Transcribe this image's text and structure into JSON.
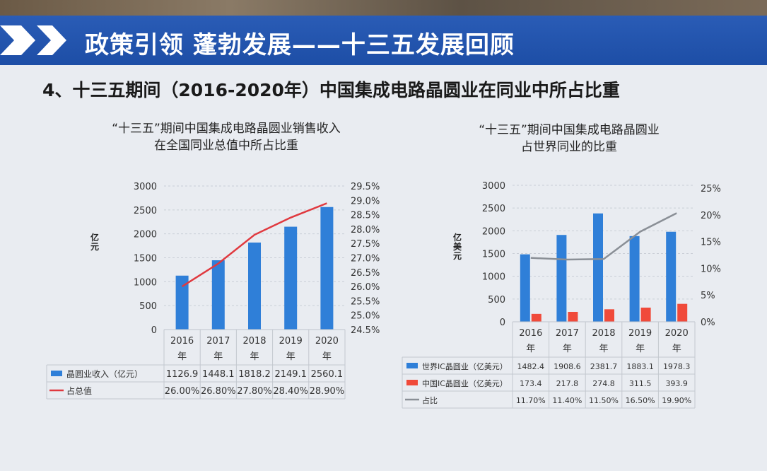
{
  "header": {
    "title": "政策引领 蓬勃发展——十三五发展回顾",
    "accent": "#1d4ea6"
  },
  "subtitle": "4、十三五期间（2016-2020年）中国集成电路晶圆业在同业中所占比重",
  "charts": [
    {
      "title_line1": "“十三五”期间中国集成电路晶圆业销售收入",
      "title_line2": "在全国同业总值中所占比重",
      "ylabel": "亿元",
      "categories": [
        "2016年",
        "2017年",
        "2018年",
        "2019年",
        "2020年"
      ],
      "left_ticks": [
        "3000",
        "2500",
        "2000",
        "1500",
        "1000",
        "500",
        "0"
      ],
      "right_ticks": [
        "29.5%",
        "29.0%",
        "28.5%",
        "28.0%",
        "27.5%",
        "27.0%",
        "26.5%",
        "26.0%",
        "25.5%",
        "25.0%",
        "24.5%"
      ],
      "table": [
        {
          "label": "晶圆业收入（亿元）",
          "values": [
            "1126.9",
            "1448.1",
            "1818.2",
            "2149.1",
            "2560.1"
          ]
        },
        {
          "label": "占总值",
          "values": [
            "26.00%",
            "26.80%",
            "27.80%",
            "28.40%",
            "28.90%"
          ]
        }
      ]
    },
    {
      "title_line1": "“十三五”期间中国集成电路晶圆业",
      "title_line2": "占世界同业的比重",
      "ylabel": "亿美元",
      "categories": [
        "2016年",
        "2017年",
        "2018年",
        "2019年",
        "2020年"
      ],
      "left_ticks": [
        "3000",
        "2500",
        "2000",
        "1500",
        "1000",
        "500",
        "0"
      ],
      "right_ticks": [
        "25%",
        "20%",
        "15%",
        "10%",
        "5%",
        "0%"
      ],
      "table": [
        {
          "label": "世界IC晶圆业（亿美元）",
          "values": [
            "1482.4",
            "1908.6",
            "2381.7",
            "1883.1",
            "1978.3"
          ]
        },
        {
          "label": "中国IC晶圆业（亿美元）",
          "values": [
            "173.4",
            "217.8",
            "274.8",
            "311.5",
            "393.9"
          ]
        },
        {
          "label": "占比",
          "values": [
            "11.70%",
            "11.40%",
            "11.50%",
            "16.50%",
            "19.90%"
          ]
        }
      ]
    }
  ],
  "chart_data": [
    {
      "type": "bar",
      "categories": [
        "2016年",
        "2017年",
        "2018年",
        "2019年",
        "2020年"
      ],
      "series": [
        {
          "name": "晶圆业收入（亿元）",
          "kind": "bar",
          "axis": "left",
          "color": "#2f7fd8",
          "values": [
            1126.9,
            1448.1,
            1818.2,
            2149.1,
            2560.1
          ]
        },
        {
          "name": "占总值",
          "kind": "line",
          "axis": "right",
          "color": "#e0393f",
          "values": [
            26.0,
            26.8,
            27.8,
            28.4,
            28.9
          ]
        }
      ],
      "ylim_left": [
        0,
        3000
      ],
      "ylim_right": [
        24.5,
        29.5
      ],
      "ylabel": "亿元"
    },
    {
      "type": "bar",
      "categories": [
        "2016年",
        "2017年",
        "2018年",
        "2019年",
        "2020年"
      ],
      "series": [
        {
          "name": "世界IC晶圆业（亿美元）",
          "kind": "bar",
          "axis": "left",
          "color": "#2f7fd8",
          "values": [
            1482.4,
            1908.6,
            2381.7,
            1883.1,
            1978.3
          ]
        },
        {
          "name": "中国IC晶圆业（亿美元）",
          "kind": "bar",
          "axis": "left",
          "color": "#f04a3a",
          "values": [
            173.4,
            217.8,
            274.8,
            311.5,
            393.9
          ]
        },
        {
          "name": "占比",
          "kind": "line",
          "axis": "right",
          "color": "#8a8f96",
          "values": [
            11.7,
            11.4,
            11.5,
            16.5,
            19.9
          ]
        }
      ],
      "ylim_left": [
        0,
        3000
      ],
      "ylim_right": [
        0,
        25
      ],
      "ylabel": "亿美元"
    }
  ]
}
